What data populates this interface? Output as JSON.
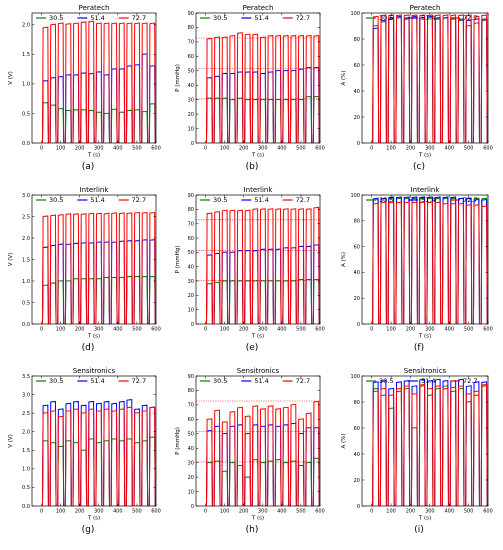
{
  "figure_colors": {
    "series": [
      "#008000",
      "#0000ff",
      "#ff0000"
    ],
    "reference_line": "#ff0000"
  },
  "chart_data": [
    {
      "id": "a",
      "type": "line",
      "title": "Peratech",
      "label": "(a)",
      "xlabel": "T (s)",
      "ylabel": "V (V)",
      "xlim": [
        -50,
        600
      ],
      "ylim": [
        0,
        2.2
      ],
      "xticks": [
        0,
        100,
        200,
        300,
        400,
        500,
        600
      ],
      "yticks": [
        0.0,
        0.5,
        1.0,
        1.5,
        2.0
      ],
      "ytick_labels": [
        "0.0",
        "0.5",
        "1.0",
        "1.5",
        "2.0"
      ],
      "reference_lines": [],
      "series": [
        {
          "name": "30.5",
          "color": "#008000",
          "on_values": [
            0.68,
            0.64,
            0.58,
            0.55,
            0.56,
            0.56,
            0.55,
            0.52,
            0.5,
            0.57,
            0.52,
            0.55,
            0.56,
            0.53,
            0.66
          ]
        },
        {
          "name": "51.4",
          "color": "#0000ff",
          "on_values": [
            1.05,
            1.1,
            1.12,
            1.15,
            1.15,
            1.18,
            1.17,
            1.2,
            1.15,
            1.25,
            1.25,
            1.3,
            1.32,
            1.5,
            1.3
          ]
        },
        {
          "name": "72.7",
          "color": "#ff0000",
          "on_values": [
            1.95,
            2.0,
            2.02,
            2.01,
            2.02,
            2.04,
            2.05,
            2.02,
            2.02,
            2.02,
            2.02,
            2.02,
            2.02,
            2.02,
            2.02
          ]
        }
      ]
    },
    {
      "id": "b",
      "type": "line",
      "title": "Peratech",
      "label": "(b)",
      "xlabel": "T (s)",
      "ylabel": "P (mmHg)",
      "xlim": [
        -50,
        600
      ],
      "ylim": [
        0,
        90
      ],
      "xticks": [
        0,
        100,
        200,
        300,
        400,
        500,
        600
      ],
      "yticks": [
        0,
        10,
        20,
        30,
        40,
        50,
        60,
        70,
        80,
        90
      ],
      "ytick_labels": [
        "0",
        "10",
        "20",
        "30",
        "40",
        "50",
        "60",
        "70",
        "80",
        "90"
      ],
      "reference_lines": [
        30.5,
        51.4,
        72.7
      ],
      "series": [
        {
          "name": "30.5",
          "color": "#008000",
          "on_values": [
            31,
            31,
            31,
            30,
            31,
            30,
            30,
            30,
            30,
            30,
            30,
            30,
            30,
            32,
            32
          ]
        },
        {
          "name": "51.4",
          "color": "#0000ff",
          "on_values": [
            45,
            46,
            48,
            48,
            49,
            49,
            49,
            48,
            49,
            50,
            50,
            50,
            51,
            52,
            52
          ]
        },
        {
          "name": "72.7",
          "color": "#ff0000",
          "on_values": [
            72,
            73,
            73,
            74,
            76,
            75,
            75,
            73,
            74,
            74,
            74,
            74,
            74,
            74,
            74
          ]
        }
      ]
    },
    {
      "id": "c",
      "type": "line",
      "title": "Peratech",
      "label": "(c)",
      "xlabel": "T (s)",
      "ylabel": "A (%)",
      "xlim": [
        -50,
        600
      ],
      "ylim": [
        0,
        100
      ],
      "xticks": [
        0,
        100,
        200,
        300,
        400,
        500,
        600
      ],
      "yticks": [
        0,
        20,
        40,
        60,
        80,
        100
      ],
      "ytick_labels": [
        "0",
        "20",
        "40",
        "60",
        "80",
        "100"
      ],
      "reference_lines": [],
      "series": [
        {
          "name": "30.5",
          "color": "#008000",
          "on_values": [
            90,
            93,
            95,
            96,
            95,
            96,
            96,
            96,
            95,
            96,
            95,
            94,
            90,
            92,
            94
          ]
        },
        {
          "name": "51.4",
          "color": "#0000ff",
          "on_values": [
            88,
            94,
            96,
            97,
            96,
            97,
            96,
            97,
            96,
            96,
            96,
            95,
            94,
            95,
            95
          ]
        },
        {
          "name": "72.7",
          "color": "#ff0000",
          "on_values": [
            97,
            98,
            98,
            98,
            98,
            98,
            98,
            98,
            98,
            98,
            98,
            98,
            98,
            97,
            98
          ]
        }
      ]
    },
    {
      "id": "d",
      "type": "line",
      "title": "Interlink",
      "label": "(d)",
      "xlabel": "T (s)",
      "ylabel": "V (V)",
      "xlim": [
        -50,
        600
      ],
      "ylim": [
        0,
        3.0
      ],
      "xticks": [
        0,
        100,
        200,
        300,
        400,
        500,
        600
      ],
      "yticks": [
        0.0,
        0.5,
        1.0,
        1.5,
        2.0,
        2.5,
        3.0
      ],
      "ytick_labels": [
        "0.0",
        "0.5",
        "1.0",
        "1.5",
        "2.0",
        "2.5",
        "3.0"
      ],
      "reference_lines": [],
      "series": [
        {
          "name": "30.5",
          "color": "#008000",
          "on_values": [
            0.9,
            0.95,
            1.0,
            1.0,
            1.05,
            1.05,
            1.05,
            1.05,
            1.08,
            1.08,
            1.08,
            1.1,
            1.1,
            1.1,
            1.1
          ]
        },
        {
          "name": "51.4",
          "color": "#0000ff",
          "on_values": [
            1.78,
            1.82,
            1.85,
            1.85,
            1.87,
            1.88,
            1.88,
            1.9,
            1.9,
            1.9,
            1.92,
            1.93,
            1.93,
            1.95,
            1.95
          ]
        },
        {
          "name": "72.7",
          "color": "#ff0000",
          "on_values": [
            2.5,
            2.52,
            2.53,
            2.55,
            2.55,
            2.55,
            2.56,
            2.56,
            2.56,
            2.57,
            2.57,
            2.57,
            2.58,
            2.58,
            2.58
          ]
        }
      ]
    },
    {
      "id": "e",
      "type": "line",
      "title": "Interlink",
      "label": "(e)",
      "xlabel": "T (s)",
      "ylabel": "P (mmHg)",
      "xlim": [
        -50,
        600
      ],
      "ylim": [
        0,
        90
      ],
      "xticks": [
        0,
        100,
        200,
        300,
        400,
        500,
        600
      ],
      "yticks": [
        0,
        10,
        20,
        30,
        40,
        50,
        60,
        70,
        80,
        90
      ],
      "ytick_labels": [
        "0",
        "10",
        "20",
        "30",
        "40",
        "50",
        "60",
        "70",
        "80",
        "90"
      ],
      "reference_lines": [
        30.5,
        51.4,
        72.7
      ],
      "series": [
        {
          "name": "30.5",
          "color": "#008000",
          "on_values": [
            28,
            29,
            30,
            30,
            30,
            30,
            30,
            30,
            30,
            30,
            30,
            30,
            31,
            31,
            31
          ]
        },
        {
          "name": "51.4",
          "color": "#0000ff",
          "on_values": [
            48,
            49,
            50,
            50,
            51,
            51,
            51,
            52,
            52,
            52,
            53,
            53,
            54,
            54,
            55
          ]
        },
        {
          "name": "72.7",
          "color": "#ff0000",
          "on_values": [
            77,
            78,
            79,
            79,
            79,
            79,
            80,
            80,
            80,
            80,
            80,
            80,
            80,
            80,
            81
          ]
        }
      ]
    },
    {
      "id": "f",
      "type": "line",
      "title": "Interlink",
      "label": "(f)",
      "xlabel": "T (s)",
      "ylabel": "A (%)",
      "xlim": [
        -50,
        600
      ],
      "ylim": [
        0,
        100
      ],
      "xticks": [
        0,
        100,
        200,
        300,
        400,
        500,
        600
      ],
      "yticks": [
        0,
        20,
        40,
        60,
        80,
        100
      ],
      "ytick_labels": [
        "0",
        "20",
        "40",
        "60",
        "80",
        "100"
      ],
      "reference_lines": [],
      "series": [
        {
          "name": "30.5",
          "color": "#008000",
          "on_values": [
            96,
            97,
            97,
            97,
            97,
            97,
            97,
            97,
            97,
            97,
            97,
            97,
            97,
            97,
            97
          ]
        },
        {
          "name": "51.4",
          "color": "#0000ff",
          "on_values": [
            97,
            97,
            98,
            98,
            98,
            98,
            98,
            98,
            98,
            98,
            98,
            97,
            97,
            96,
            96
          ]
        },
        {
          "name": "72.7",
          "color": "#ff0000",
          "on_values": [
            93,
            94,
            94,
            94,
            94,
            94,
            94,
            94,
            94,
            93,
            93,
            93,
            92,
            92,
            91
          ]
        }
      ]
    },
    {
      "id": "g",
      "type": "line",
      "title": "Sensitronics",
      "label": "(g)",
      "xlabel": "T (s)",
      "ylabel": "V (V)",
      "xlim": [
        -50,
        600
      ],
      "ylim": [
        0,
        3.5
      ],
      "xticks": [
        0,
        100,
        200,
        300,
        400,
        500,
        600
      ],
      "yticks": [
        0.0,
        0.5,
        1.0,
        1.5,
        2.0,
        2.5,
        3.0,
        3.5
      ],
      "ytick_labels": [
        "0.0",
        "0.5",
        "1.0",
        "1.5",
        "2.0",
        "2.5",
        "3.0",
        "3.5"
      ],
      "reference_lines": [],
      "series": [
        {
          "name": "30.5",
          "color": "#008000",
          "on_values": [
            1.75,
            1.7,
            1.6,
            1.75,
            1.7,
            1.5,
            1.8,
            1.7,
            1.75,
            1.8,
            1.75,
            1.8,
            1.7,
            1.75,
            1.85
          ]
        },
        {
          "name": "51.4",
          "color": "#0000ff",
          "on_values": [
            2.7,
            2.8,
            2.6,
            2.75,
            2.8,
            2.7,
            2.8,
            2.75,
            2.8,
            2.75,
            2.8,
            2.85,
            2.6,
            2.7,
            2.65
          ]
        },
        {
          "name": "72.7",
          "color": "#ff0000",
          "on_values": [
            2.5,
            2.55,
            2.4,
            2.55,
            2.6,
            2.5,
            2.6,
            2.55,
            2.6,
            2.55,
            2.6,
            2.65,
            2.5,
            2.55,
            2.65
          ]
        }
      ]
    },
    {
      "id": "h",
      "type": "line",
      "title": "Sensitronics",
      "label": "(h)",
      "xlabel": "T (s)",
      "ylabel": "P (mmHg)",
      "xlim": [
        -50,
        600
      ],
      "ylim": [
        0,
        90
      ],
      "xticks": [
        0,
        100,
        200,
        300,
        400,
        500,
        600
      ],
      "yticks": [
        0,
        10,
        20,
        30,
        40,
        50,
        60,
        70,
        80,
        90
      ],
      "ytick_labels": [
        "0",
        "10",
        "20",
        "30",
        "40",
        "50",
        "60",
        "70",
        "80",
        "90"
      ],
      "reference_lines": [
        30.5,
        51.4,
        72.7
      ],
      "series": [
        {
          "name": "30.5",
          "color": "#008000",
          "on_values": [
            30,
            31,
            24,
            30,
            28,
            20,
            32,
            30,
            31,
            32,
            30,
            31,
            28,
            30,
            33
          ]
        },
        {
          "name": "51.4",
          "color": "#0000ff",
          "on_values": [
            52,
            55,
            50,
            55,
            56,
            50,
            56,
            55,
            56,
            55,
            56,
            57,
            50,
            54,
            54
          ]
        },
        {
          "name": "72.7",
          "color": "#ff0000",
          "on_values": [
            60,
            66,
            58,
            65,
            68,
            62,
            69,
            67,
            69,
            67,
            68,
            70,
            60,
            64,
            72
          ]
        }
      ]
    },
    {
      "id": "i",
      "type": "line",
      "title": "Sensitronics",
      "label": "(i)",
      "xlabel": "T (s)",
      "ylabel": "A (%)",
      "xlim": [
        -50,
        600
      ],
      "ylim": [
        0,
        100
      ],
      "xticks": [
        0,
        100,
        200,
        300,
        400,
        500,
        600
      ],
      "yticks": [
        0,
        20,
        40,
        60,
        80,
        100
      ],
      "ytick_labels": [
        "0",
        "20",
        "40",
        "60",
        "80",
        "100"
      ],
      "reference_lines": [],
      "series": [
        {
          "name": "30.5",
          "color": "#008000",
          "on_values": [
            90,
            85,
            75,
            88,
            90,
            60,
            92,
            85,
            90,
            92,
            88,
            90,
            80,
            85,
            92
          ]
        },
        {
          "name": "51.4",
          "color": "#0000ff",
          "on_values": [
            95,
            96,
            90,
            95,
            96,
            92,
            97,
            96,
            97,
            96,
            96,
            97,
            92,
            95,
            95
          ]
        },
        {
          "name": "72.7",
          "color": "#ff0000",
          "on_values": [
            88,
            90,
            85,
            90,
            92,
            86,
            93,
            90,
            92,
            90,
            91,
            92,
            86,
            88,
            93
          ]
        }
      ]
    }
  ]
}
